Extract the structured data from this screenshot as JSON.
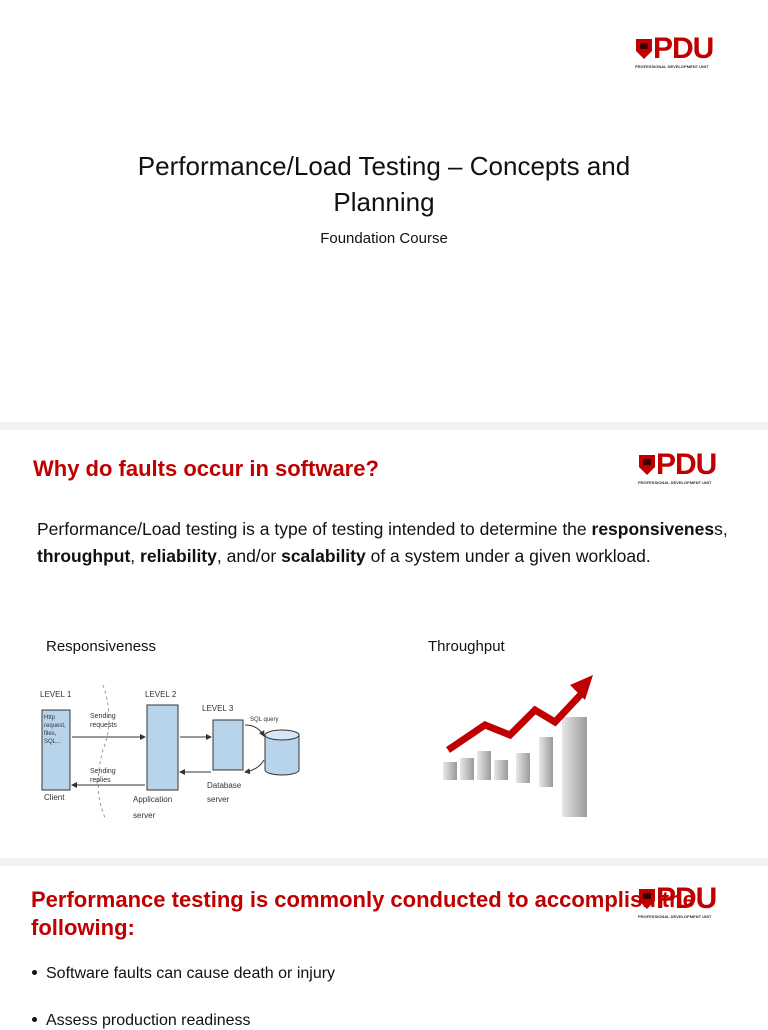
{
  "logo": {
    "mark": "PDU",
    "caption": "PROFESSIONAL DEVELOPMENT UNIT"
  },
  "slide1": {
    "title": "Performance/Load Testing – Concepts and Planning",
    "subtitle": "Foundation Course"
  },
  "slide2": {
    "heading": "Why do faults occur in software?",
    "paragraph": [
      {
        "text": "Performance/Load testing is a type of testing intended to determine the ",
        "bold": false
      },
      {
        "text": "responsivenes",
        "bold": true
      },
      {
        "text": "s, ",
        "bold": false
      },
      {
        "text": "throughput",
        "bold": true
      },
      {
        "text": ", ",
        "bold": false
      },
      {
        "text": "reliability",
        "bold": true
      },
      {
        "text": ", and/or ",
        "bold": false
      },
      {
        "text": "scalability",
        "bold": true
      },
      {
        "text": " of a system under a given workload.",
        "bold": false
      }
    ],
    "left_caption": "Responsiveness",
    "right_caption": "Throughput",
    "diagram": {
      "level1": "LEVEL 1",
      "level2": "LEVEL 2",
      "level3": "LEVEL 3",
      "client_box": "Http request, files, SQL...",
      "sending_requests": "Sending requests",
      "sql_query": "SQL query",
      "sending_replies": "Sending replies",
      "client": "Client",
      "app_server": "Application server",
      "db_server": "Database server"
    }
  },
  "slide3": {
    "heading": "Performance testing is commonly conducted to accomplish the following:",
    "bullets": [
      "Software faults can cause death or injury",
      "Assess production readiness"
    ]
  }
}
